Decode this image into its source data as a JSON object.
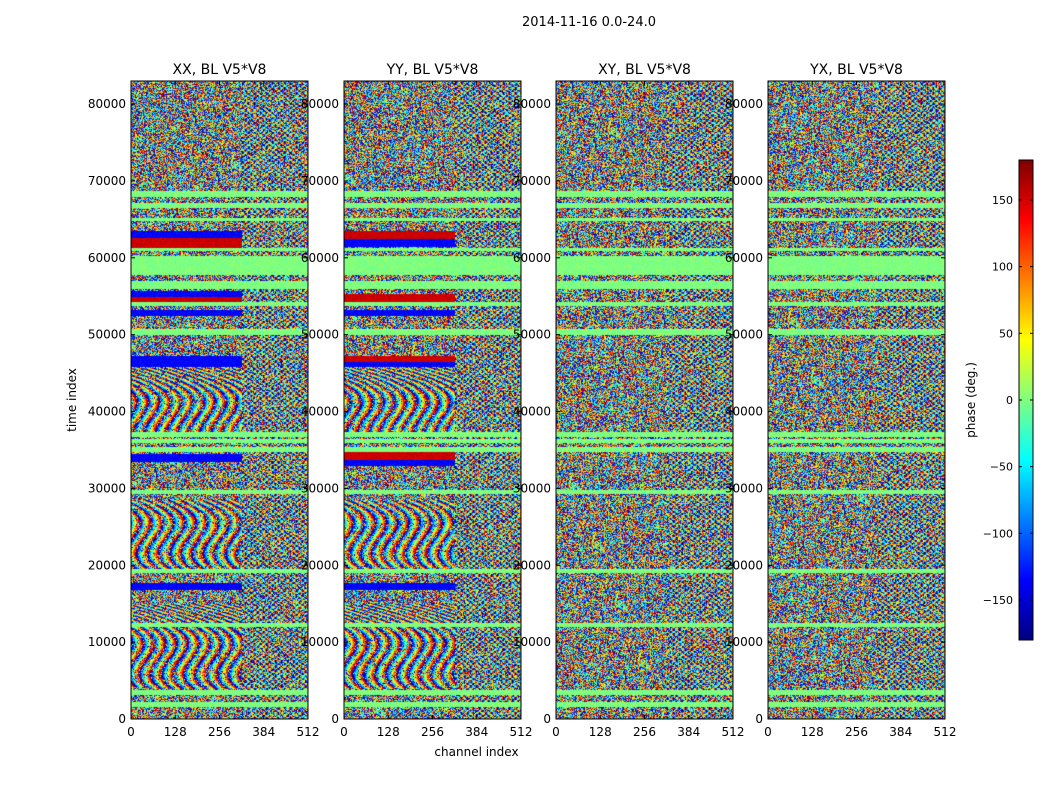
{
  "figure": {
    "suptitle": "2014-11-16 0.0-24.0"
  },
  "chart_data": {
    "type": "heatmap",
    "shared": {
      "xlabel": "channel index",
      "ylabel": "time index",
      "xlim": [
        0,
        512
      ],
      "ylim": [
        0,
        83000
      ],
      "xticks": [
        0,
        128,
        256,
        384,
        512
      ],
      "yticks": [
        0,
        10000,
        20000,
        30000,
        40000,
        50000,
        60000,
        70000,
        80000
      ],
      "colormap": "jet",
      "band_split_channel": 320
    },
    "panels": [
      {
        "title": "XX, BL V5*V8",
        "structure": "fringes",
        "flagged_bands": [
          [
            60900,
            62600,
            "red"
          ],
          [
            62600,
            63500,
            "blue"
          ],
          [
            62000,
            62600,
            "blue"
          ],
          [
            54300,
            55000,
            "red"
          ],
          [
            55000,
            55700,
            "blue"
          ],
          [
            52500,
            53300,
            "blue"
          ],
          [
            45800,
            47300,
            "blue"
          ],
          [
            33500,
            34500,
            "blue"
          ],
          [
            16800,
            17800,
            "blue"
          ]
        ]
      },
      {
        "title": "YY, BL V5*V8",
        "structure": "fringes",
        "flagged_bands": [
          [
            62500,
            63500,
            "red"
          ],
          [
            61500,
            62500,
            "blue"
          ],
          [
            54300,
            55300,
            "red"
          ],
          [
            52500,
            53300,
            "blue"
          ],
          [
            46500,
            47300,
            "red"
          ],
          [
            45800,
            46500,
            "blue"
          ],
          [
            33800,
            34800,
            "red"
          ],
          [
            33000,
            33800,
            "blue"
          ],
          [
            16800,
            17800,
            "blue"
          ]
        ]
      },
      {
        "title": "XY, BL V5*V8",
        "structure": "noise",
        "flagged_bands": []
      },
      {
        "title": "YX, BL V5*V8",
        "structure": "noise",
        "flagged_bands": []
      }
    ],
    "flat_zero_bands": [
      [
        57800,
        60300
      ],
      [
        56000,
        57000
      ],
      [
        53800,
        54300
      ],
      [
        50000,
        50800
      ],
      [
        36800,
        37400
      ],
      [
        36000,
        36500
      ],
      [
        34800,
        35400
      ],
      [
        29300,
        29900
      ],
      [
        19000,
        19600
      ],
      [
        12000,
        12600
      ],
      [
        3200,
        3800
      ],
      [
        1600,
        2300
      ],
      [
        68000,
        68700
      ],
      [
        66600,
        67200
      ],
      [
        64800,
        65300
      ],
      [
        60900,
        61300
      ]
    ],
    "colorbar": {
      "label": "phase (deg.)",
      "range": [
        -180,
        180
      ],
      "ticks": [
        -150,
        -100,
        -50,
        0,
        50,
        100,
        150
      ],
      "tick_labels": [
        "−150",
        "−100",
        "−50",
        "0",
        "50",
        "100",
        "150"
      ]
    }
  }
}
